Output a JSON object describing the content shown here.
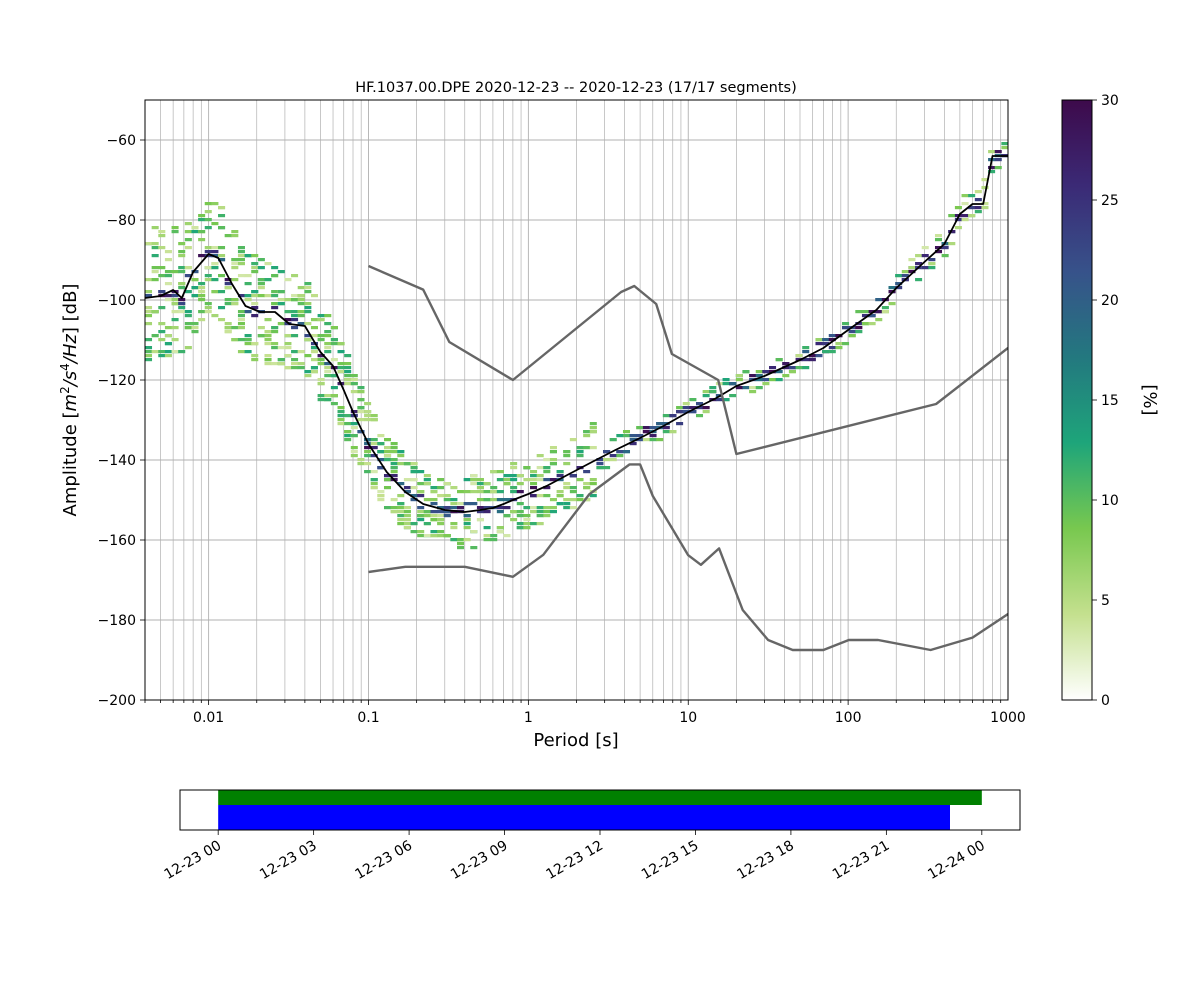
{
  "chart_data": [
    {
      "type": "heatmap",
      "title": "HF.1037.00.DPE   2020-12-23 -- 2020-12-23  (17/17 segments)",
      "xlabel": "Period [s]",
      "ylabel": "Amplitude [m²/s⁴/Hz] [dB]",
      "ylabel_parts": {
        "prefix": "Amplitude [",
        "m": "m",
        "two": "2",
        "s": "/s",
        "four": "4",
        "hz": "/Hz",
        "suffix": "] [dB]"
      },
      "x_scale": "log",
      "xlim": [
        0.004,
        1000
      ],
      "ylim": [
        -200,
        -50
      ],
      "x_ticks": [
        0.01,
        0.1,
        1,
        10,
        100,
        1000
      ],
      "x_tick_labels": [
        "0.01",
        "0.1",
        "1",
        "10",
        "100",
        "1000"
      ],
      "y_ticks": [
        -200,
        -180,
        -160,
        -140,
        -120,
        -100,
        -80,
        -60
      ],
      "y_tick_labels": [
        "−200",
        "−180",
        "−160",
        "−140",
        "−120",
        "−100",
        "−80",
        "−60"
      ],
      "grid": true,
      "colorbar": {
        "label": "[%]",
        "range": [
          0,
          30
        ],
        "ticks": [
          0,
          5,
          10,
          15,
          20,
          25,
          30
        ],
        "tick_labels": [
          "0",
          "5",
          "10",
          "15",
          "20",
          "25",
          "30"
        ],
        "colormap": [
          "#ffffff",
          "#c4e08e",
          "#78c84f",
          "#1ea57a",
          "#23787f",
          "#37528a",
          "#3b2a76",
          "#3d0a4b"
        ]
      },
      "series": [
        {
          "name": "",
          "style": "mode",
          "color": "#000000",
          "x": [
            0.004,
            0.005,
            0.006,
            0.0068,
            0.008,
            0.01,
            0.0115,
            0.014,
            0.017,
            0.021,
            0.026,
            0.032,
            0.04,
            0.05,
            0.06,
            0.07,
            0.08,
            0.1,
            0.13,
            0.17,
            0.22,
            0.3,
            0.4,
            0.5,
            0.6,
            0.7,
            0.8,
            1,
            1.3,
            1.8,
            2.5,
            3.5,
            5,
            7,
            10,
            15,
            20,
            30,
            50,
            70,
            100,
            150,
            200,
            300,
            400,
            500,
            600,
            700,
            800,
            1000
          ],
          "y": [
            -99.5,
            -99,
            -97.5,
            -99.5,
            -93,
            -88.5,
            -89.5,
            -96,
            -101.5,
            -103,
            -103,
            -106,
            -106.5,
            -113,
            -116.5,
            -122.5,
            -128,
            -136,
            -143,
            -148,
            -151,
            -152.5,
            -153,
            -152.5,
            -152,
            -151,
            -150,
            -148.5,
            -146.5,
            -143.5,
            -140.5,
            -137.5,
            -134.5,
            -131.5,
            -128,
            -124.5,
            -121.5,
            -119,
            -115,
            -112,
            -107.5,
            -102.5,
            -97,
            -90.5,
            -86,
            -78.5,
            -76,
            -76,
            -64,
            -64
          ]
        },
        {
          "name": "",
          "style": "noise-model",
          "color": "#666666",
          "x": [
            0.1,
            0.22,
            0.32,
            0.8,
            3.8,
            4.6,
            6.3,
            7.9,
            15.4,
            20,
            354.8,
            1000
          ],
          "y": [
            -91.5,
            -97.4,
            -110.5,
            -120,
            -98,
            -96.5,
            -101,
            -113.5,
            -120,
            -138.5,
            -126,
            -112
          ]
        },
        {
          "name": "",
          "style": "noise-model",
          "color": "#666666",
          "x": [
            0.1,
            0.17,
            0.4,
            0.8,
            1.24,
            2.4,
            4.3,
            5,
            6,
            10,
            12,
            15.6,
            21.9,
            31.6,
            45,
            70,
            101,
            154,
            328,
            600,
            1000
          ],
          "y": [
            -168,
            -166.7,
            -166.7,
            -169.2,
            -163.7,
            -148.6,
            -141.1,
            -141.1,
            -149,
            -163.8,
            -166.2,
            -162.1,
            -177.5,
            -185,
            -187.5,
            -187.5,
            -185,
            -185,
            -187.5,
            -184.4,
            -178.5
          ]
        }
      ]
    },
    {
      "type": "timeline",
      "x_tick_labels": [
        "12-23 00",
        "12-23 03",
        "12-23 06",
        "12-23 09",
        "12-23 12",
        "12-23 15",
        "12-23 18",
        "12-23 21",
        "12-24 00"
      ],
      "x_range_hours": [
        -1.2,
        25.2
      ],
      "series": [
        {
          "name": "",
          "color": "#008000",
          "start_hour": 0,
          "end_hour": 24
        },
        {
          "name": "",
          "color": "#0000ff",
          "start_hour": 0,
          "end_hour": 23
        }
      ]
    }
  ]
}
